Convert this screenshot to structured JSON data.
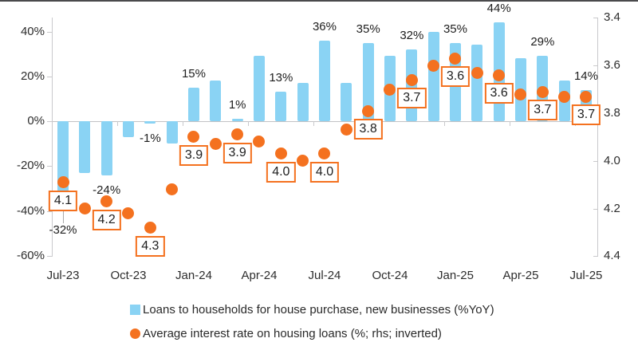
{
  "chart_data": {
    "type": "combo",
    "title": "",
    "categories": [
      "Jul-23",
      "Aug-23",
      "Sep-23",
      "Oct-23",
      "Nov-23",
      "Dec-23",
      "Jan-24",
      "Feb-24",
      "Mar-24",
      "Apr-24",
      "May-24",
      "Jun-24",
      "Jul-24",
      "Aug-24",
      "Sep-24",
      "Oct-24",
      "Nov-24",
      "Dec-24",
      "Jan-25",
      "Feb-25",
      "Mar-25",
      "Apr-25",
      "May-25",
      "Jun-25",
      "Jul-25"
    ],
    "series": [
      {
        "name": "Loans to households for house purchase, new businesses (%YoY)",
        "type": "bar",
        "axis": "left",
        "color": "#8ad3f4",
        "values": [
          -32,
          -23,
          -24,
          -7,
          -1,
          -10,
          15,
          18,
          1,
          29,
          13,
          17,
          36,
          17,
          35,
          29,
          32,
          40,
          35,
          34,
          44,
          28,
          29,
          18,
          14
        ]
      },
      {
        "name": "Average interest rate on housing loans (%; rhs; inverted)",
        "type": "scatter",
        "axis": "right",
        "color": "#f4711f",
        "values": [
          4.09,
          4.2,
          4.17,
          4.22,
          4.28,
          4.12,
          3.9,
          3.93,
          3.89,
          3.92,
          3.97,
          4.0,
          3.97,
          3.87,
          3.79,
          3.7,
          3.66,
          3.6,
          3.57,
          3.63,
          3.64,
          3.72,
          3.71,
          3.73,
          3.73
        ]
      }
    ],
    "point_labels": {
      "bar": [
        "-32%",
        null,
        "-24%",
        null,
        "-1%",
        null,
        "15%",
        null,
        "1%",
        null,
        "13%",
        null,
        "36%",
        null,
        "35%",
        null,
        "32%",
        null,
        "35%",
        null,
        "44%",
        null,
        "29%",
        null,
        "14%"
      ],
      "rate": [
        "4.1",
        null,
        "4.2",
        null,
        "4.3",
        null,
        "3.9",
        null,
        "3.9",
        null,
        "4.0",
        null,
        "4.0",
        null,
        "3.8",
        null,
        "3.7",
        null,
        "3.6",
        null,
        "3.6",
        null,
        "3.7",
        null,
        "3.7"
      ]
    },
    "axes": {
      "left": {
        "labels": [
          "40%",
          "20%",
          "0%",
          "-20%",
          "-40%",
          "-60%"
        ],
        "values": [
          40,
          20,
          0,
          -20,
          -40,
          -60
        ],
        "range": [
          -60,
          40
        ],
        "inverted": false
      },
      "right": {
        "labels": [
          "3.4",
          "3.6",
          "3.8",
          "4.0",
          "4.2",
          "4.4"
        ],
        "values": [
          3.4,
          3.6,
          3.8,
          4.0,
          4.2,
          4.4
        ],
        "range": [
          3.4,
          4.4
        ],
        "inverted": true
      },
      "x": {
        "tick_labels": [
          "Jul-23",
          "Oct-23",
          "Jan-24",
          "Apr-24",
          "Jul-24",
          "Oct-24",
          "Jan-25",
          "Apr-25",
          "Jul-25"
        ],
        "tick_indices": [
          0,
          3,
          6,
          9,
          12,
          15,
          18,
          21,
          24
        ]
      }
    },
    "legend": [
      {
        "marker": "square",
        "color": "#8ad3f4",
        "label": "Loans to households for house purchase, new businesses (%YoY)"
      },
      {
        "marker": "circle",
        "color": "#f4711f",
        "label": "Average interest rate on housing loans (%; rhs; inverted)"
      }
    ],
    "grid": "none"
  }
}
